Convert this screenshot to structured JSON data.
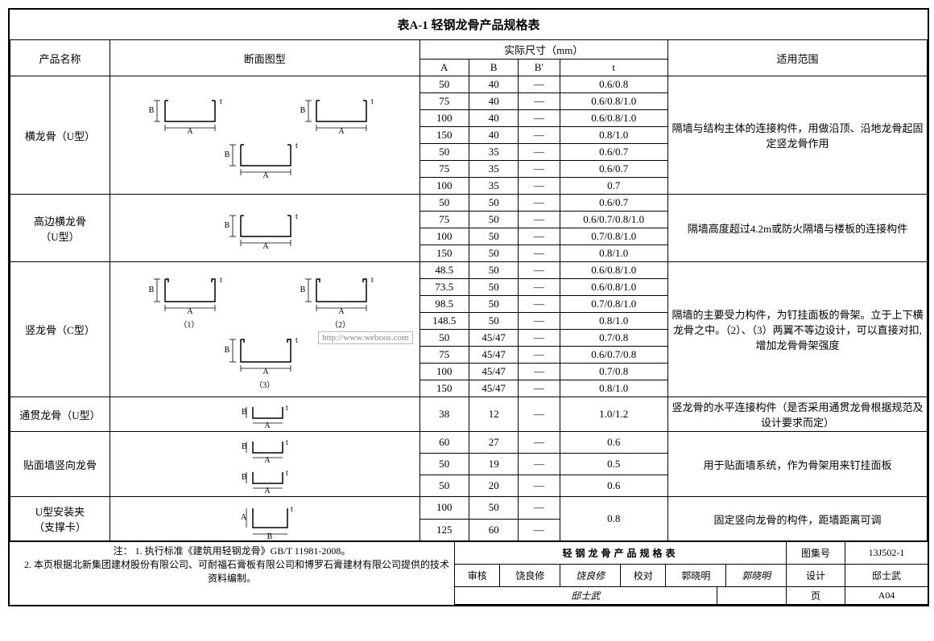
{
  "table_caption": "表A-1  轻钢龙骨产品规格表",
  "headers": {
    "product_name": "产品名称",
    "section_diagram": "断面图型",
    "actual_dim": "实际尺寸（mm）",
    "A": "A",
    "B": "B",
    "Bprime": "B′",
    "t": "t",
    "scope": "适用范围"
  },
  "sections": [
    {
      "name": "横龙骨（U型）",
      "name_lines": [
        "横龙骨（U型）"
      ],
      "diagram_labels": [],
      "rows": [
        {
          "A": "50",
          "B": "40",
          "Bp": "—",
          "t": "0.6/0.8"
        },
        {
          "A": "75",
          "B": "40",
          "Bp": "—",
          "t": "0.6/0.8/1.0"
        },
        {
          "A": "100",
          "B": "40",
          "Bp": "—",
          "t": "0.6/0.8/1.0"
        },
        {
          "A": "150",
          "B": "40",
          "Bp": "—",
          "t": "0.8/1.0"
        },
        {
          "A": "50",
          "B": "35",
          "Bp": "—",
          "t": "0.6/0.7"
        },
        {
          "A": "75",
          "B": "35",
          "Bp": "—",
          "t": "0.6/0.7"
        },
        {
          "A": "100",
          "B": "35",
          "Bp": "—",
          "t": "0.7"
        }
      ],
      "scope": "隔墙与结构主体的连接构件，用做沿顶、沿地龙骨起固定竖龙骨作用"
    },
    {
      "name": "高边横龙骨（U型）",
      "name_lines": [
        "高边横龙骨",
        "（U型）"
      ],
      "rows": [
        {
          "A": "50",
          "B": "50",
          "Bp": "—",
          "t": "0.6/0.7"
        },
        {
          "A": "75",
          "B": "50",
          "Bp": "—",
          "t": "0.6/0.7/0.8/1.0"
        },
        {
          "A": "100",
          "B": "50",
          "Bp": "—",
          "t": "0.7/0.8/1.0"
        },
        {
          "A": "150",
          "B": "50",
          "Bp": "—",
          "t": "0.8/1.0"
        }
      ],
      "scope": "隔墙高度超过4.2m或防火隔墙与楼板的连接构件"
    },
    {
      "name": "竖龙骨（C型）",
      "name_lines": [
        "竖龙骨（C型）"
      ],
      "diagram_labels": [
        "（1）",
        "（2）",
        "（3）"
      ],
      "rows": [
        {
          "A": "48.5",
          "B": "50",
          "Bp": "—",
          "t": "0.6/0.8/1.0"
        },
        {
          "A": "73.5",
          "B": "50",
          "Bp": "—",
          "t": "0.6/0.8/1.0"
        },
        {
          "A": "98.5",
          "B": "50",
          "Bp": "—",
          "t": "0.7/0.8/1.0"
        },
        {
          "A": "148.5",
          "B": "50",
          "Bp": "—",
          "t": "0.8/1.0"
        },
        {
          "A": "50",
          "B": "45/47",
          "Bp": "—",
          "t": "0.7/0.8"
        },
        {
          "A": "75",
          "B": "45/47",
          "Bp": "—",
          "t": "0.6/0.7/0.8"
        },
        {
          "A": "100",
          "B": "45/47",
          "Bp": "—",
          "t": "0.7/0.8"
        },
        {
          "A": "150",
          "B": "45/47",
          "Bp": "—",
          "t": "0.8/1.0"
        }
      ],
      "scope": "隔墙的主要受力构件，为钉挂面板的骨架。立于上下横龙骨之中。（2）、（3）两翼不等边设计，可以直接对扣,增加龙骨骨架强度",
      "watermark": "http://www.weboos.com"
    },
    {
      "name": "通贯龙骨（U型）",
      "name_lines": [
        "通贯龙骨（U型）"
      ],
      "rows": [
        {
          "A": "38",
          "B": "12",
          "Bp": "—",
          "t": "1.0/1.2"
        }
      ],
      "scope": "竖龙骨的水平连接构件（是否采用通贯龙骨根据规范及设计要求而定）"
    },
    {
      "name": "贴面墙竖向龙骨",
      "name_lines": [
        "贴面墙竖向龙骨"
      ],
      "rows": [
        {
          "A": "60",
          "B": "27",
          "Bp": "—",
          "t": "0.6"
        },
        {
          "A": "50",
          "B": "19",
          "Bp": "—",
          "t": "0.5"
        },
        {
          "A": "50",
          "B": "20",
          "Bp": "—",
          "t": "0.6"
        }
      ],
      "scope": "用于贴面墙系统，作为骨架用来钉挂面板"
    },
    {
      "name": "U型安装夹（支撑卡）",
      "name_lines": [
        "U型安装夹",
        "（支撑卡）"
      ],
      "rows": [
        {
          "A": "100",
          "B": "50",
          "Bp": "—",
          "t": "0.8",
          "t_rowspan": 2
        },
        {
          "A": "125",
          "B": "60",
          "Bp": "—"
        }
      ],
      "scope": "固定竖向龙骨的构件，距墙距离可调"
    }
  ],
  "notes": {
    "prefix": "注：",
    "items": [
      "1. 执行标准《建筑用轻钢龙骨》GB/T 11981-2008。",
      "2. 本页根据北新集团建材股份有限公司、可耐福石膏板有限公司和博罗石膏建材有限公司提供的技术资料编制。"
    ]
  },
  "title_block": {
    "main_title": "轻钢龙骨产品规格表",
    "atlas_label": "图集号",
    "atlas_value": "13J502-1",
    "page_label": "页",
    "page_value": "A04",
    "signoff": {
      "review_label": "审核",
      "review_name": "饶良修",
      "review_sig": "饶良修",
      "check_label": "校对",
      "check_name": "郭晓明",
      "check_sig": "郭晓明",
      "design_label": "设计",
      "design_name": "邸士武",
      "design_sig": "邸士武"
    }
  }
}
